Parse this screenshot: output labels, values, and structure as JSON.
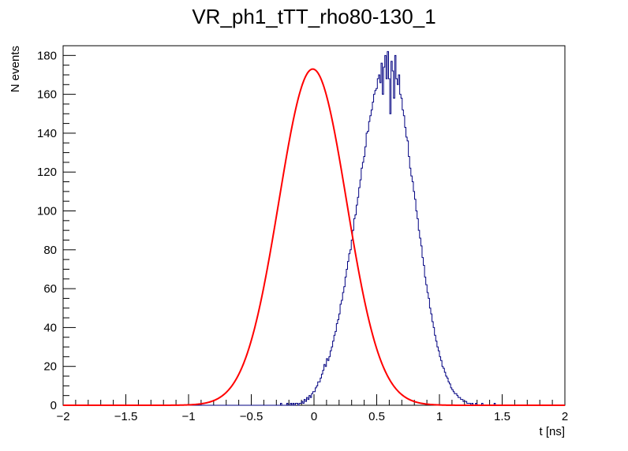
{
  "chart_data": {
    "type": "histogram",
    "title": "VR_ph1_tTT_rho80-130_1",
    "xlabel": "t [ns]",
    "ylabel": "N events",
    "xlim": [
      -2,
      2
    ],
    "ylim": [
      0,
      185
    ],
    "x_ticks": [
      -2,
      -1.5,
      -1,
      -0.5,
      0,
      0.5,
      1,
      1.5,
      2
    ],
    "x_tick_labels": [
      "−2",
      "−1.5",
      "−1",
      "−0.5",
      "0",
      "0.5",
      "1",
      "1.5",
      "2"
    ],
    "y_ticks": [
      0,
      20,
      40,
      60,
      80,
      100,
      120,
      140,
      160,
      180
    ],
    "y_tick_labels": [
      "0",
      "20",
      "40",
      "60",
      "80",
      "100",
      "120",
      "140",
      "160",
      "180"
    ],
    "grid": false,
    "legend": false,
    "series": [
      {
        "name": "histogram",
        "kind": "step",
        "color": "#000080",
        "bin_edges_range": [
          -2,
          2
        ],
        "bin_width": 0.01,
        "counts": [
          0,
          0,
          0,
          0,
          0,
          0,
          0,
          0,
          0,
          0,
          0,
          0,
          0,
          0,
          0,
          0,
          0,
          0,
          0,
          0,
          0,
          0,
          0,
          0,
          0,
          0,
          0,
          0,
          0,
          0,
          0,
          0,
          0,
          0,
          0,
          0,
          0,
          0,
          0,
          0,
          0,
          0,
          0,
          0,
          0,
          0,
          0,
          0,
          0,
          0,
          0,
          0,
          0,
          0,
          0,
          0,
          0,
          0,
          0,
          0,
          0,
          0,
          0,
          0,
          0,
          0,
          0,
          0,
          0,
          0,
          0,
          0,
          0,
          0,
          0,
          0,
          0,
          0,
          0,
          0,
          0,
          0,
          0,
          0,
          0,
          0,
          0,
          0,
          0,
          0,
          0,
          0,
          0,
          0,
          0,
          0,
          0,
          0,
          0,
          0,
          0,
          0,
          0,
          0,
          0,
          0,
          0,
          0,
          0,
          0,
          0,
          0,
          0,
          0,
          0,
          0,
          0,
          0,
          0,
          0,
          0,
          0,
          0,
          0,
          0,
          0,
          0,
          0,
          0,
          0,
          0,
          0,
          0,
          0,
          0,
          0,
          0,
          0,
          0,
          0,
          0,
          0,
          0,
          0,
          0,
          0,
          0,
          0,
          0,
          0,
          0,
          0,
          0,
          0,
          0,
          0,
          0,
          0,
          0,
          0,
          0,
          0,
          0,
          0,
          0,
          0,
          0,
          0,
          0,
          0,
          0,
          0,
          0,
          0,
          0,
          1,
          0,
          0,
          0,
          0,
          1,
          0,
          0,
          1,
          0,
          1,
          0,
          1,
          1,
          0,
          1,
          1,
          2,
          1,
          3,
          2,
          4,
          3,
          5,
          4,
          6,
          7,
          7,
          9,
          10,
          12,
          12,
          14,
          16,
          18,
          21,
          20,
          24,
          23,
          25,
          28,
          30,
          33,
          36,
          38,
          42,
          44,
          47,
          52,
          54,
          58,
          61,
          66,
          70,
          74,
          78,
          80,
          85,
          90,
          96,
          98,
          103,
          107,
          112,
          116,
          122,
          125,
          128,
          133,
          140,
          141,
          146,
          149,
          152,
          156,
          160,
          162,
          163,
          168,
          170,
          166,
          176,
          160,
          174,
          180,
          168,
          182,
          168,
          150,
          177,
          172,
          158,
          180,
          168,
          165,
          170,
          160,
          158,
          152,
          149,
          143,
          138,
          136,
          128,
          122,
          118,
          115,
          110,
          106,
          100,
          96,
          90,
          86,
          82,
          76,
          72,
          66,
          62,
          58,
          55,
          50,
          47,
          43,
          40,
          36,
          33,
          30,
          28,
          25,
          23,
          20,
          19,
          17,
          15,
          14,
          12,
          11,
          9,
          8,
          7,
          6,
          6,
          5,
          4,
          4,
          3,
          3,
          2,
          2,
          2,
          1,
          1,
          1,
          0,
          1,
          0,
          0,
          1,
          0,
          0,
          0,
          0,
          1,
          0,
          0,
          0,
          0,
          0,
          0,
          0,
          0,
          0,
          1,
          0,
          0,
          0,
          0,
          0,
          0,
          0,
          0,
          0,
          0,
          0,
          0,
          0,
          0,
          0,
          0,
          0,
          0,
          0,
          0,
          0,
          0,
          0,
          0,
          0,
          0,
          0,
          0,
          0,
          0,
          0,
          0,
          0,
          0,
          0,
          0,
          0,
          0,
          0,
          0,
          0,
          0,
          0,
          0,
          0,
          0,
          0,
          0,
          0,
          0,
          0,
          0,
          0,
          0,
          0,
          0
        ]
      },
      {
        "name": "gaussian fit",
        "kind": "line",
        "color": "#ff0000",
        "function": "gaussian",
        "amplitude": 173,
        "mean": -0.01,
        "sigma": 0.27
      }
    ]
  }
}
